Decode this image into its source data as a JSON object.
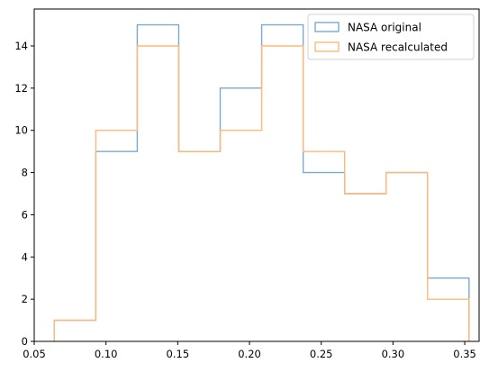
{
  "chart_data": {
    "type": "histogram",
    "title": "",
    "xlabel": "",
    "ylabel": "",
    "xlim": [
      0.05,
      0.36
    ],
    "ylim": [
      0,
      15.75
    ],
    "grid": false,
    "legend_position": "top-right",
    "x_ticks": [
      "0.05",
      "0.10",
      "0.15",
      "0.20",
      "0.25",
      "0.30",
      "0.35"
    ],
    "y_ticks": [
      "0",
      "2",
      "4",
      "6",
      "8",
      "10",
      "12",
      "14"
    ],
    "bin_edges": [
      0.064,
      0.0929,
      0.1218,
      0.1507,
      0.1796,
      0.2085,
      0.2374,
      0.2663,
      0.2952,
      0.3241,
      0.353
    ],
    "series": [
      {
        "name": "NASA original",
        "color": "#7aa9d4",
        "counts": [
          1,
          9,
          15,
          9,
          12,
          15,
          8,
          7,
          8,
          3
        ]
      },
      {
        "name": "NASA recalculated",
        "color": "#ffb877",
        "counts": [
          1,
          10,
          14,
          9,
          10,
          14,
          9,
          7,
          8,
          2
        ]
      }
    ]
  }
}
